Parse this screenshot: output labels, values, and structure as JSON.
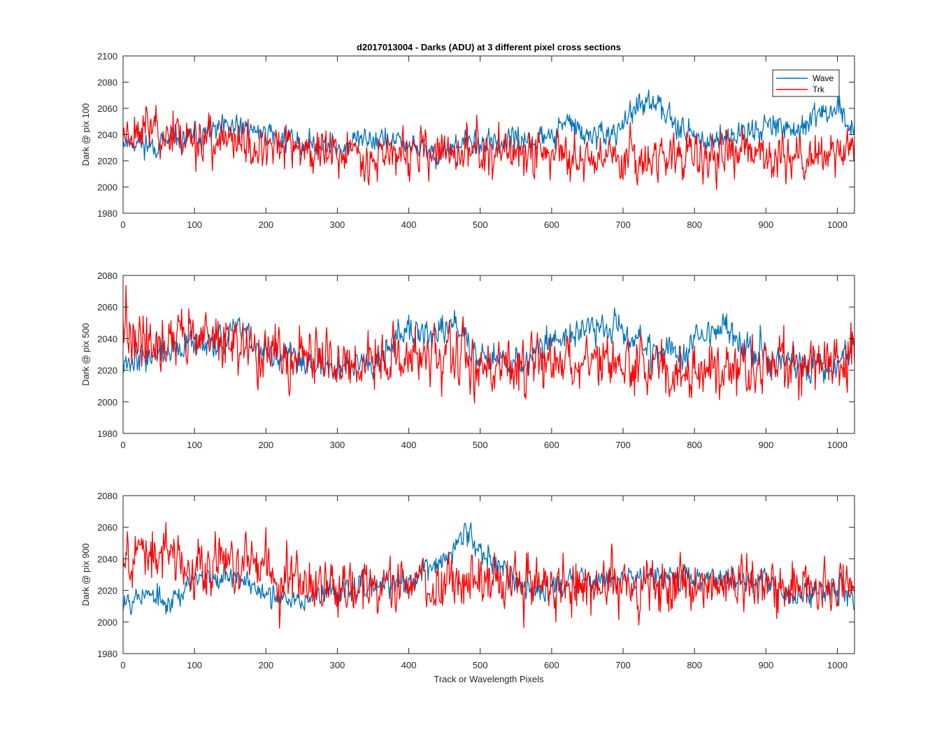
{
  "figure": {
    "title": "d2017013004 - Darks (ADU) at 3 different pixel cross sections",
    "xlabel": "Track or Wavelength Pixels"
  },
  "legend": {
    "entries": [
      {
        "name": "Wave",
        "color": "#0072BD"
      },
      {
        "name": "Trk",
        "color": "#FF0000"
      }
    ],
    "location": "top-right of first subplot"
  },
  "chart_data": [
    {
      "type": "line",
      "ylabel": "Dark @ pix 100",
      "xlim": [
        0,
        1024
      ],
      "ylim": [
        1980,
        2100
      ],
      "xticks": [
        0,
        100,
        200,
        300,
        400,
        500,
        600,
        700,
        800,
        900,
        1000
      ],
      "yticks": [
        1980,
        2000,
        2020,
        2040,
        2060,
        2080,
        2100
      ],
      "series": [
        {
          "name": "Wave",
          "color": "#0072BD",
          "noise": 6,
          "seed": 11,
          "x": [
            0,
            50,
            100,
            150,
            200,
            250,
            300,
            350,
            400,
            440,
            480,
            550,
            600,
            620,
            650,
            690,
            720,
            760,
            800,
            850,
            900,
            950,
            980,
            1000,
            1024
          ],
          "y": [
            2035,
            2032,
            2038,
            2045,
            2042,
            2033,
            2030,
            2038,
            2032,
            2025,
            2033,
            2035,
            2038,
            2050,
            2038,
            2040,
            2062,
            2060,
            2036,
            2038,
            2048,
            2044,
            2055,
            2062,
            2040
          ]
        },
        {
          "name": "Trk",
          "color": "#FF0000",
          "noise": 11,
          "seed": 23,
          "x": [
            0,
            30,
            60,
            100,
            150,
            200,
            300,
            400,
            500,
            600,
            700,
            800,
            900,
            1000,
            1024
          ],
          "y": [
            2042,
            2046,
            2041,
            2037,
            2034,
            2030,
            2026,
            2025,
            2026,
            2026,
            2024,
            2023,
            2024,
            2025,
            2030
          ]
        }
      ]
    },
    {
      "type": "line",
      "ylabel": "Dark @ pix 500",
      "xlim": [
        0,
        1024
      ],
      "ylim": [
        1980,
        2080
      ],
      "xticks": [
        0,
        100,
        200,
        300,
        400,
        500,
        600,
        700,
        800,
        900,
        1000
      ],
      "yticks": [
        1980,
        2000,
        2020,
        2040,
        2060,
        2080
      ],
      "series": [
        {
          "name": "Wave",
          "color": "#0072BD",
          "noise": 6,
          "seed": 37,
          "x": [
            0,
            50,
            100,
            170,
            200,
            300,
            350,
            390,
            430,
            465,
            500,
            560,
            600,
            650,
            690,
            740,
            780,
            800,
            840,
            880,
            920,
            960,
            1000,
            1024
          ],
          "y": [
            2028,
            2030,
            2035,
            2045,
            2030,
            2022,
            2028,
            2045,
            2040,
            2050,
            2030,
            2025,
            2040,
            2045,
            2048,
            2035,
            2028,
            2040,
            2048,
            2030,
            2025,
            2022,
            2024,
            2038
          ]
        },
        {
          "name": "Trk",
          "color": "#FF0000",
          "noise": 11,
          "seed": 41,
          "x": [
            0,
            50,
            100,
            150,
            200,
            300,
            400,
            500,
            600,
            700,
            800,
            900,
            1000,
            1024
          ],
          "y": [
            2042,
            2038,
            2044,
            2036,
            2030,
            2025,
            2028,
            2025,
            2024,
            2024,
            2020,
            2022,
            2025,
            2028
          ]
        }
      ]
    },
    {
      "type": "line",
      "ylabel": "Dark @ pix 900",
      "xlim": [
        0,
        1024
      ],
      "ylim": [
        1980,
        2080
      ],
      "xticks": [
        0,
        100,
        200,
        300,
        400,
        500,
        600,
        700,
        800,
        900,
        1000
      ],
      "yticks": [
        1980,
        2000,
        2020,
        2040,
        2060,
        2080
      ],
      "series": [
        {
          "name": "Wave",
          "color": "#0072BD",
          "noise": 5,
          "seed": 53,
          "x": [
            0,
            30,
            60,
            100,
            150,
            200,
            220,
            300,
            400,
            450,
            480,
            500,
            560,
            600,
            700,
            800,
            900,
            940,
            1000,
            1024
          ],
          "y": [
            2015,
            2018,
            2012,
            2025,
            2032,
            2018,
            2012,
            2020,
            2025,
            2040,
            2055,
            2048,
            2022,
            2022,
            2030,
            2028,
            2026,
            2015,
            2024,
            2015
          ]
        },
        {
          "name": "Trk",
          "color": "#FF0000",
          "noise": 11,
          "seed": 67,
          "x": [
            0,
            40,
            100,
            160,
            200,
            300,
            400,
            500,
            600,
            700,
            800,
            900,
            1000,
            1024
          ],
          "y": [
            2045,
            2042,
            2038,
            2036,
            2032,
            2025,
            2024,
            2025,
            2023,
            2024,
            2023,
            2024,
            2024,
            2028
          ]
        }
      ]
    }
  ]
}
